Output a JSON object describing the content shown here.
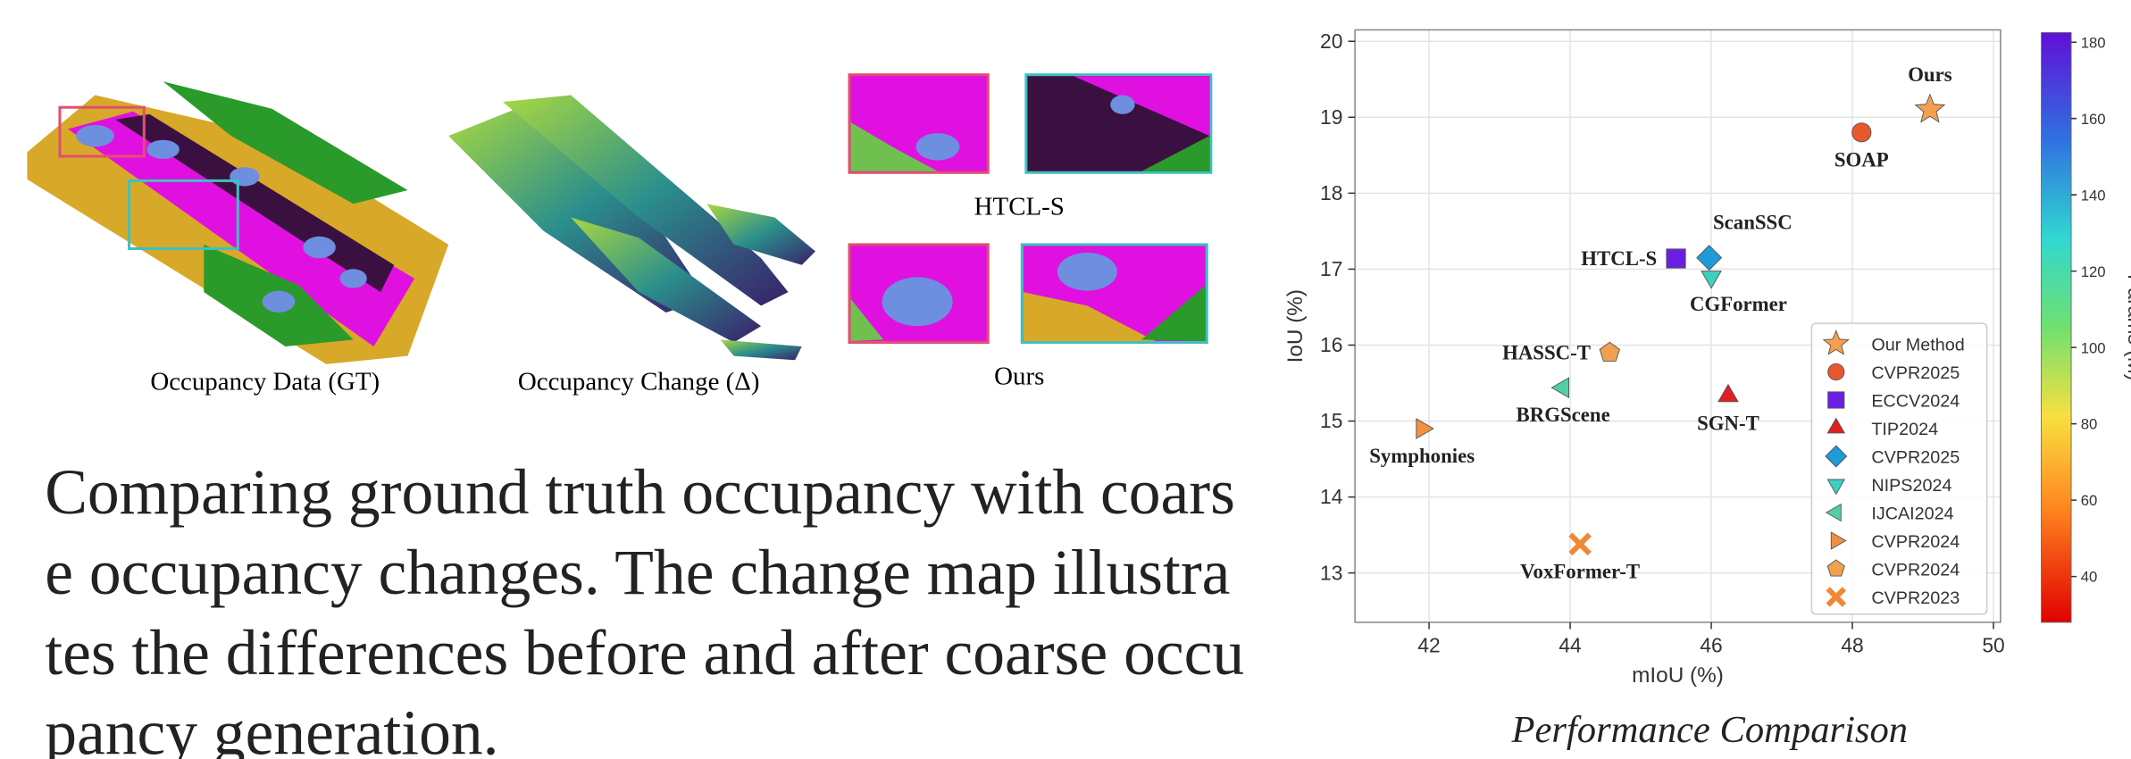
{
  "figure": {
    "panels": [
      "Occupancy Data (GT)",
      "Occupancy Change (Δ)"
    ],
    "crops": [
      "HTCL-S",
      "Ours"
    ]
  },
  "caption": "Comparing ground truth occupancy with coarse occupancy changes. The change map illustrates the differences before and after coarse occupancy generation.",
  "chart_data": {
    "type": "scatter",
    "title": "Performance Comparison",
    "xlabel": "mIoU (%)",
    "ylabel": "IoU (%)",
    "xlim": [
      40.95,
      50.1
    ],
    "ylim": [
      12.35,
      20.15
    ],
    "xticks": [
      42,
      44,
      46,
      48,
      50
    ],
    "yticks": [
      13,
      14,
      15,
      16,
      17,
      18,
      19,
      20
    ],
    "grid": true,
    "legend": "lower right",
    "colorbar": {
      "label": "Params (M)",
      "lim": [
        28,
        182.5
      ],
      "ticks": [
        40,
        60,
        80,
        100,
        120,
        140,
        160,
        180
      ]
    },
    "series": [
      {
        "name": "Ours",
        "legend": "Our Method",
        "marker": "star",
        "color": "#f5a050",
        "x": [
          49.1
        ],
        "values": [
          19.1
        ]
      },
      {
        "name": "SOAP",
        "legend": "CVPR2025",
        "marker": "circle",
        "color": "#e8582c",
        "x": [
          48.13
        ],
        "values": [
          18.8
        ]
      },
      {
        "name": "HTCL-S",
        "legend": "ECCV2024",
        "marker": "square",
        "color": "#6a1fe0",
        "x": [
          45.5
        ],
        "values": [
          17.14
        ]
      },
      {
        "name": "SGN-T",
        "legend": "TIP2024",
        "marker": "triangle-up",
        "color": "#e02020",
        "x": [
          46.24
        ],
        "values": [
          15.33
        ]
      },
      {
        "name": "ScanSSC",
        "legend": "CVPR2025",
        "marker": "diamond",
        "color": "#1e9bd8",
        "x": [
          45.97
        ],
        "values": [
          17.15
        ]
      },
      {
        "name": "CGFormer",
        "legend": "NIPS2024",
        "marker": "triangle-down",
        "color": "#3cd0c0",
        "x": [
          46.0
        ],
        "values": [
          16.9
        ]
      },
      {
        "name": "BRGScene",
        "legend": "IJCAI2024",
        "marker": "triangle-left",
        "color": "#50d0a0",
        "x": [
          43.9
        ],
        "values": [
          15.44
        ]
      },
      {
        "name": "Symphonies",
        "legend": "CVPR2024",
        "marker": "triangle-right",
        "color": "#f09040",
        "x": [
          41.9
        ],
        "values": [
          14.9
        ]
      },
      {
        "name": "HASSC-T",
        "legend": "CVPR2024",
        "marker": "pentagon",
        "color": "#f0a050",
        "x": [
          44.56
        ],
        "values": [
          15.9
        ]
      },
      {
        "name": "VoxFormer-T",
        "legend": "CVPR2023",
        "marker": "x",
        "color": "#f08838",
        "x": [
          44.14
        ],
        "values": [
          13.38
        ]
      }
    ]
  }
}
